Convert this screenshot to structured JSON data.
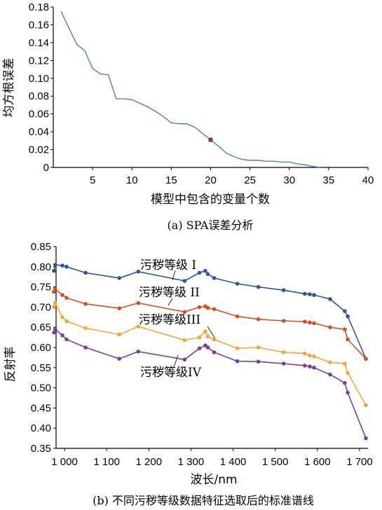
{
  "chart_data": [
    {
      "type": "line",
      "caption": "(a)  SPA误差分析",
      "xlabel": "模型中包含的变量个数",
      "ylabel": "均方根误差",
      "xlim": [
        0,
        40
      ],
      "ylim": [
        0,
        0.18
      ],
      "xticks": [
        5,
        10,
        15,
        20,
        25,
        30,
        35,
        40
      ],
      "yticks": [
        0,
        0.02,
        0.04,
        0.06,
        0.08,
        0.1,
        0.12,
        0.14,
        0.16,
        0.18
      ],
      "ytick_labels": [
        "0",
        "0.02",
        "0.04",
        "0.06",
        "0.08",
        "0.10",
        "0.12",
        "0.14",
        "0.16",
        "0.18"
      ],
      "series": [
        {
          "color": "#4472C4",
          "x": [
            1,
            2,
            3,
            4,
            5,
            6,
            7,
            8,
            9,
            10,
            11,
            12,
            13,
            14,
            15,
            16,
            17,
            18,
            19,
            20,
            21,
            22,
            23,
            24,
            25,
            26,
            27,
            28,
            29,
            30,
            31,
            32,
            33,
            34
          ],
          "y": [
            0.175,
            0.156,
            0.138,
            0.131,
            0.111,
            0.105,
            0.104,
            0.077,
            0.077,
            0.076,
            0.072,
            0.068,
            0.063,
            0.057,
            0.05,
            0.049,
            0.049,
            0.045,
            0.038,
            0.031,
            0.024,
            0.016,
            0.012,
            0.009,
            0.008,
            0.008,
            0.007,
            0.007,
            0.006,
            0.006,
            0.004,
            0.003,
            0.001,
            0.0
          ]
        }
      ],
      "marker": {
        "x": 20,
        "y": 0.031,
        "color": "#C0392B"
      }
    },
    {
      "type": "line",
      "caption": "(b)  不同污秽等级数据特征选取后的标准谱线",
      "xlabel": "波长/nm",
      "ylabel": "反射率",
      "xlim": [
        980,
        1720
      ],
      "ylim": [
        0.35,
        0.85
      ],
      "xticks": [
        1000,
        1100,
        1200,
        1300,
        1400,
        1500,
        1600,
        1700
      ],
      "xtick_labels": [
        "1 000",
        "1 100",
        "1 200",
        "1 300",
        "1 400",
        "1 500",
        "1 600",
        "1 700"
      ],
      "yticks": [
        0.35,
        0.4,
        0.45,
        0.5,
        0.55,
        0.6,
        0.65,
        0.7,
        0.75,
        0.8,
        0.85
      ],
      "ytick_labels": [
        "0.35",
        "0.40",
        "0.45",
        "0.50",
        "0.55",
        "0.60",
        "0.65",
        "0.70",
        "0.75",
        "0.80",
        "0.85"
      ],
      "x": [
        975,
        978,
        995,
        1005,
        1050,
        1130,
        1175,
        1285,
        1320,
        1334,
        1340,
        1355,
        1410,
        1460,
        1520,
        1570,
        1582,
        1592,
        1630,
        1665,
        1672,
        1715
      ],
      "series": [
        {
          "name": "污秽等级 I",
          "color": "#2E5597",
          "values": [
            0.79,
            0.805,
            0.803,
            0.8,
            0.785,
            0.772,
            0.788,
            0.765,
            0.785,
            0.79,
            0.782,
            0.772,
            0.758,
            0.75,
            0.742,
            0.733,
            0.732,
            0.73,
            0.72,
            0.69,
            0.677,
            0.572
          ]
        },
        {
          "name": "污秽等级 II",
          "color": "#D0502A",
          "values": [
            0.738,
            0.745,
            0.73,
            0.723,
            0.708,
            0.697,
            0.71,
            0.688,
            0.7,
            0.702,
            0.698,
            0.695,
            0.677,
            0.67,
            0.666,
            0.664,
            0.662,
            0.66,
            0.65,
            0.645,
            0.62,
            0.572
          ]
        },
        {
          "name": "污秽等级III",
          "color": "#F5A63A",
          "values": [
            0.7,
            0.71,
            0.675,
            0.665,
            0.648,
            0.632,
            0.652,
            0.618,
            0.625,
            0.64,
            0.627,
            0.62,
            0.598,
            0.6,
            0.588,
            0.585,
            0.58,
            0.578,
            0.563,
            0.56,
            0.537,
            0.457
          ]
        },
        {
          "name": "污秽等级IV",
          "color": "#7A3E9B",
          "values": [
            0.637,
            0.645,
            0.63,
            0.62,
            0.6,
            0.572,
            0.59,
            0.57,
            0.598,
            0.605,
            0.6,
            0.588,
            0.566,
            0.565,
            0.56,
            0.555,
            0.553,
            0.55,
            0.533,
            0.512,
            0.488,
            0.375
          ]
        }
      ]
    }
  ]
}
